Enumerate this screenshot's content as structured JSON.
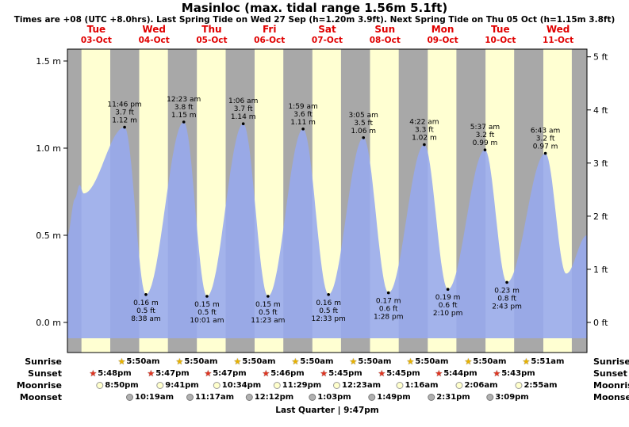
{
  "title": "Masinloc (max. tidal range 1.56m 5.1ft)",
  "subtitle": "Times are +08 (UTC +8.0hrs). Last Spring Tide on Wed 27 Sep (h=1.20m 3.9ft). Next Spring Tide on Thu 05 Oct (h=1.15m 3.8ft)",
  "days": [
    {
      "name": "Tue",
      "date": "03-Oct"
    },
    {
      "name": "Wed",
      "date": "04-Oct"
    },
    {
      "name": "Thu",
      "date": "05-Oct"
    },
    {
      "name": "Fri",
      "date": "06-Oct"
    },
    {
      "name": "Sat",
      "date": "07-Oct"
    },
    {
      "name": "Sun",
      "date": "08-Oct"
    },
    {
      "name": "Mon",
      "date": "09-Oct"
    },
    {
      "name": "Tue",
      "date": "10-Oct"
    },
    {
      "name": "Wed",
      "date": "11-Oct"
    }
  ],
  "axis": {
    "m": [
      {
        "label": "0.0 m",
        "value": 0
      },
      {
        "label": "0.5 m",
        "value": 0.5
      },
      {
        "label": "1.0 m",
        "value": 1.0
      },
      {
        "label": "1.5 m",
        "value": 1.5
      }
    ],
    "ft": [
      {
        "label": "0 ft",
        "value": 0
      },
      {
        "label": "1 ft",
        "value": 1
      },
      {
        "label": "2 ft",
        "value": 2
      },
      {
        "label": "3 ft",
        "value": 3
      },
      {
        "label": "4 ft",
        "value": 4
      },
      {
        "label": "5 ft",
        "value": 5
      }
    ]
  },
  "chart_data": {
    "type": "area",
    "x_range_days": [
      0,
      9
    ],
    "ylim_m": [
      -0.17,
      1.58
    ],
    "day_color": "#ffffd2",
    "night_color": "#a8a8a8",
    "area_color": "#96a8ee",
    "label_color": "#e00000",
    "night_bands": [
      [
        0,
        0.2431
      ],
      [
        0.7417,
        1.2431
      ],
      [
        1.741,
        2.2431
      ],
      [
        2.741,
        3.2431
      ],
      [
        3.7403,
        4.2431
      ],
      [
        4.7396,
        5.2431
      ],
      [
        5.7396,
        6.2431
      ],
      [
        6.7389,
        7.2431
      ],
      [
        7.7382,
        8.2438
      ],
      [
        8.7375,
        9
      ]
    ],
    "curve_points": [
      [
        0,
        0.5
      ],
      [
        0.13,
        0.71
      ],
      [
        0.21,
        0.79
      ],
      [
        0.28,
        0.74
      ],
      [
        0.9903,
        1.12
      ],
      [
        1.3597,
        0.16
      ],
      [
        2.016,
        1.15
      ],
      [
        2.4174,
        0.15
      ],
      [
        3.0458,
        1.14
      ],
      [
        3.4743,
        0.15
      ],
      [
        4.0826,
        1.11
      ],
      [
        4.5229,
        0.16
      ],
      [
        5.1285,
        1.06
      ],
      [
        5.5611,
        0.17
      ],
      [
        6.1819,
        1.02
      ],
      [
        6.5903,
        0.19
      ],
      [
        7.234,
        0.99
      ],
      [
        7.6132,
        0.23
      ],
      [
        8.2799,
        0.97
      ],
      [
        8.64,
        0.28
      ],
      [
        9,
        0.5
      ]
    ],
    "highs": [
      {
        "t": 0.9903,
        "h": 1.12,
        "time": "11:46 pm",
        "ft": "3.7 ft",
        "m": "1.12 m"
      },
      {
        "t": 2.016,
        "h": 1.15,
        "time": "12:23 am",
        "ft": "3.8 ft",
        "m": "1.15 m"
      },
      {
        "t": 3.0458,
        "h": 1.14,
        "time": "1:06 am",
        "ft": "3.7 ft",
        "m": "1.14 m"
      },
      {
        "t": 4.0826,
        "h": 1.11,
        "time": "1:59 am",
        "ft": "3.6 ft",
        "m": "1.11 m"
      },
      {
        "t": 5.1285,
        "h": 1.06,
        "time": "3:05 am",
        "ft": "3.5 ft",
        "m": "1.06 m"
      },
      {
        "t": 6.1819,
        "h": 1.02,
        "time": "4:22 am",
        "ft": "3.3 ft",
        "m": "1.02 m"
      },
      {
        "t": 7.234,
        "h": 0.99,
        "time": "5:37 am",
        "ft": "3.2 ft",
        "m": "0.99 m"
      },
      {
        "t": 8.2799,
        "h": 0.97,
        "time": "6:43 am",
        "ft": "3.2 ft",
        "m": "0.97 m"
      }
    ],
    "lows": [
      {
        "t": 1.3597,
        "h": 0.16,
        "m": "0.16 m",
        "ft": "0.5 ft",
        "time": "8:38 am"
      },
      {
        "t": 2.4174,
        "h": 0.15,
        "m": "0.15 m",
        "ft": "0.5 ft",
        "time": "10:01 am"
      },
      {
        "t": 3.4743,
        "h": 0.15,
        "m": "0.15 m",
        "ft": "0.5 ft",
        "time": "11:23 am"
      },
      {
        "t": 4.5229,
        "h": 0.16,
        "m": "0.16 m",
        "ft": "0.5 ft",
        "time": "12:33 pm"
      },
      {
        "t": 5.5611,
        "h": 0.17,
        "m": "0.17 m",
        "ft": "0.6 ft",
        "time": "1:28 pm"
      },
      {
        "t": 6.5903,
        "h": 0.19,
        "m": "0.19 m",
        "ft": "0.6 ft",
        "time": "2:10 pm"
      },
      {
        "t": 7.6132,
        "h": 0.23,
        "m": "0.23 m",
        "ft": "0.8 ft",
        "time": "2:43 pm"
      }
    ]
  },
  "astro": {
    "sunrise": {
      "label": "Sunrise",
      "icon": "star",
      "icon_color": "#e8b200",
      "icon_border": "#806000",
      "events": [
        {
          "t": 1.2431,
          "time": "5:50am"
        },
        {
          "t": 2.2431,
          "time": "5:50am"
        },
        {
          "t": 3.2431,
          "time": "5:50am"
        },
        {
          "t": 4.2431,
          "time": "5:50am"
        },
        {
          "t": 5.2431,
          "time": "5:50am"
        },
        {
          "t": 6.2431,
          "time": "5:50am"
        },
        {
          "t": 7.2431,
          "time": "5:50am"
        },
        {
          "t": 8.2438,
          "time": "5:51am"
        }
      ]
    },
    "sunset": {
      "label": "Sunset",
      "icon": "star",
      "icon_color": "#e03420",
      "icon_border": "#701000",
      "events": [
        {
          "t": 0.7417,
          "time": "5:48pm"
        },
        {
          "t": 1.741,
          "time": "5:47pm"
        },
        {
          "t": 2.741,
          "time": "5:47pm"
        },
        {
          "t": 3.7403,
          "time": "5:46pm"
        },
        {
          "t": 4.7396,
          "time": "5:45pm"
        },
        {
          "t": 5.7396,
          "time": "5:45pm"
        },
        {
          "t": 6.7389,
          "time": "5:44pm"
        },
        {
          "t": 7.7382,
          "time": "5:43pm"
        }
      ]
    },
    "moonrise": {
      "label": "Moonrise",
      "icon": "circle",
      "icon_color": "#ffffcc",
      "icon_border": "#999999",
      "events": [
        {
          "t": 0.8681,
          "time": "8:50pm"
        },
        {
          "t": 1.9035,
          "time": "9:41pm"
        },
        {
          "t": 2.9403,
          "time": "10:34pm"
        },
        {
          "t": 3.9785,
          "time": "11:29pm"
        },
        {
          "t": 5.016,
          "time": "12:23am"
        },
        {
          "t": 6.0528,
          "time": "1:16am"
        },
        {
          "t": 7.0875,
          "time": "2:06am"
        },
        {
          "t": 8.1215,
          "time": "2:55am"
        }
      ]
    },
    "moonset": {
      "label": "Moonset",
      "icon": "circle",
      "icon_color": "#b0b0b0",
      "icon_border": "#7a7a7a",
      "events": [
        {
          "t": 1.4299,
          "time": "10:19am"
        },
        {
          "t": 2.4701,
          "time": "11:17am"
        },
        {
          "t": 3.5083,
          "time": "12:12pm"
        },
        {
          "t": 4.5438,
          "time": "1:03pm"
        },
        {
          "t": 5.5757,
          "time": "1:49pm"
        },
        {
          "t": 6.6049,
          "time": "2:31pm"
        },
        {
          "t": 7.6313,
          "time": "3:09pm"
        }
      ]
    }
  },
  "footer": {
    "text": "Last Quarter | 9:47pm"
  }
}
